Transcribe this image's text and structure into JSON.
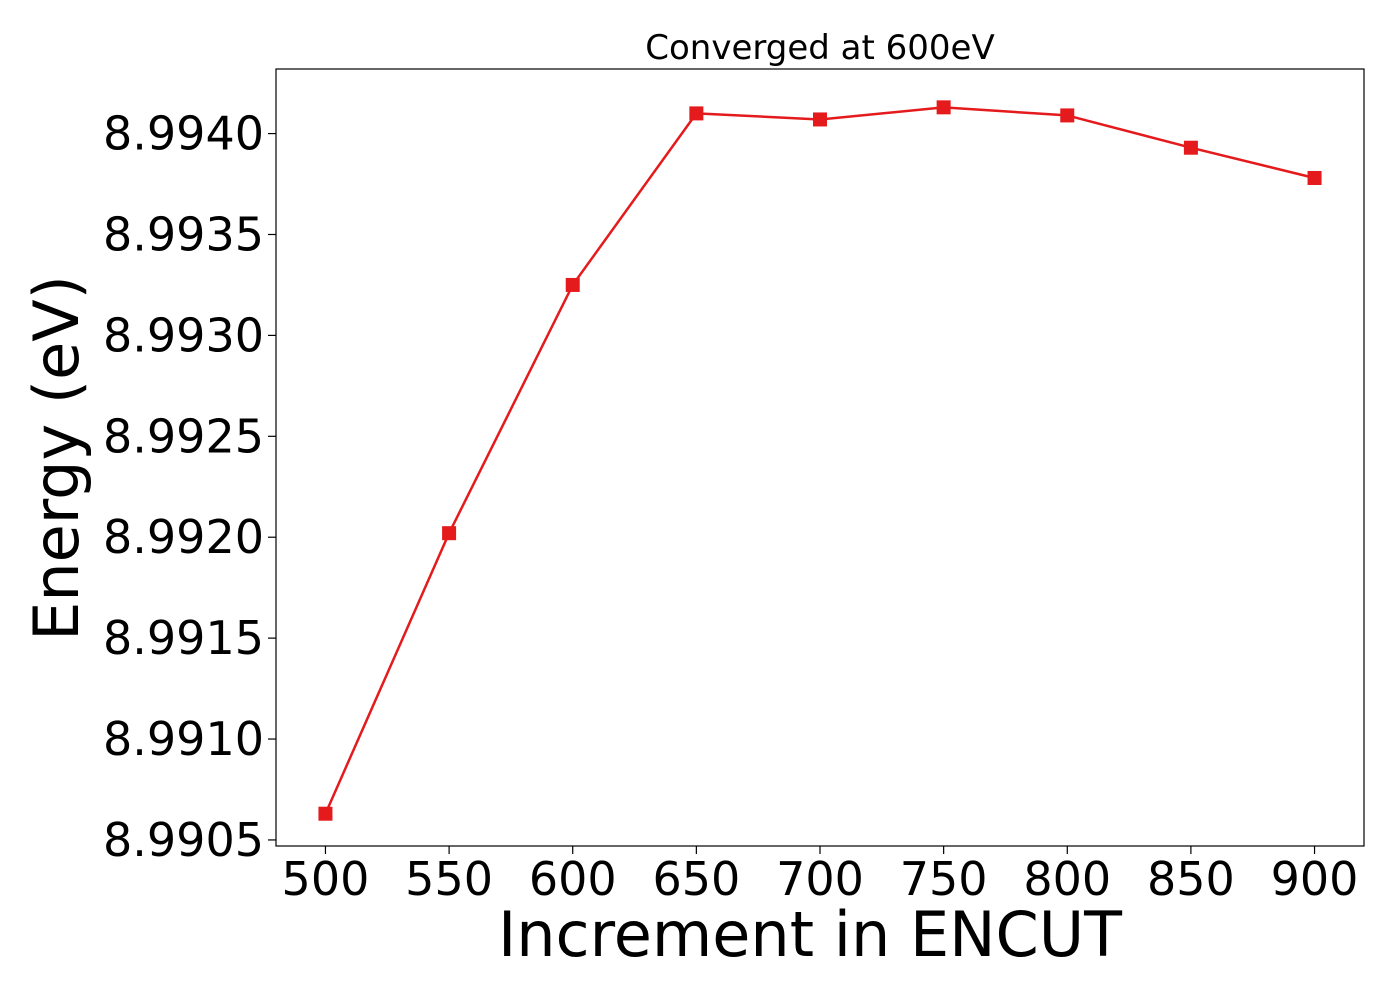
{
  "chart_data": {
    "type": "line",
    "title": "Converged at 600eV",
    "xlabel": "Increment in ENCUT",
    "ylabel": "Energy (eV)",
    "x": [
      500,
      550,
      600,
      650,
      700,
      750,
      800,
      850,
      900
    ],
    "series": [
      {
        "values": [
          8.99063,
          8.99202,
          8.99325,
          8.9941,
          8.99407,
          8.99413,
          8.99409,
          8.99393,
          8.99378
        ],
        "color": "#e41a1c",
        "marker": "square"
      }
    ],
    "xticks": [
      "500",
      "550",
      "600",
      "650",
      "700",
      "750",
      "800",
      "850",
      "900"
    ],
    "yticks": [
      "8.9905",
      "8.9910",
      "8.9915",
      "8.9920",
      "8.9925",
      "8.9930",
      "8.9935",
      "8.9940"
    ],
    "xlim": [
      480,
      920
    ],
    "ylim": [
      8.99047,
      8.99432
    ],
    "grid": false
  }
}
